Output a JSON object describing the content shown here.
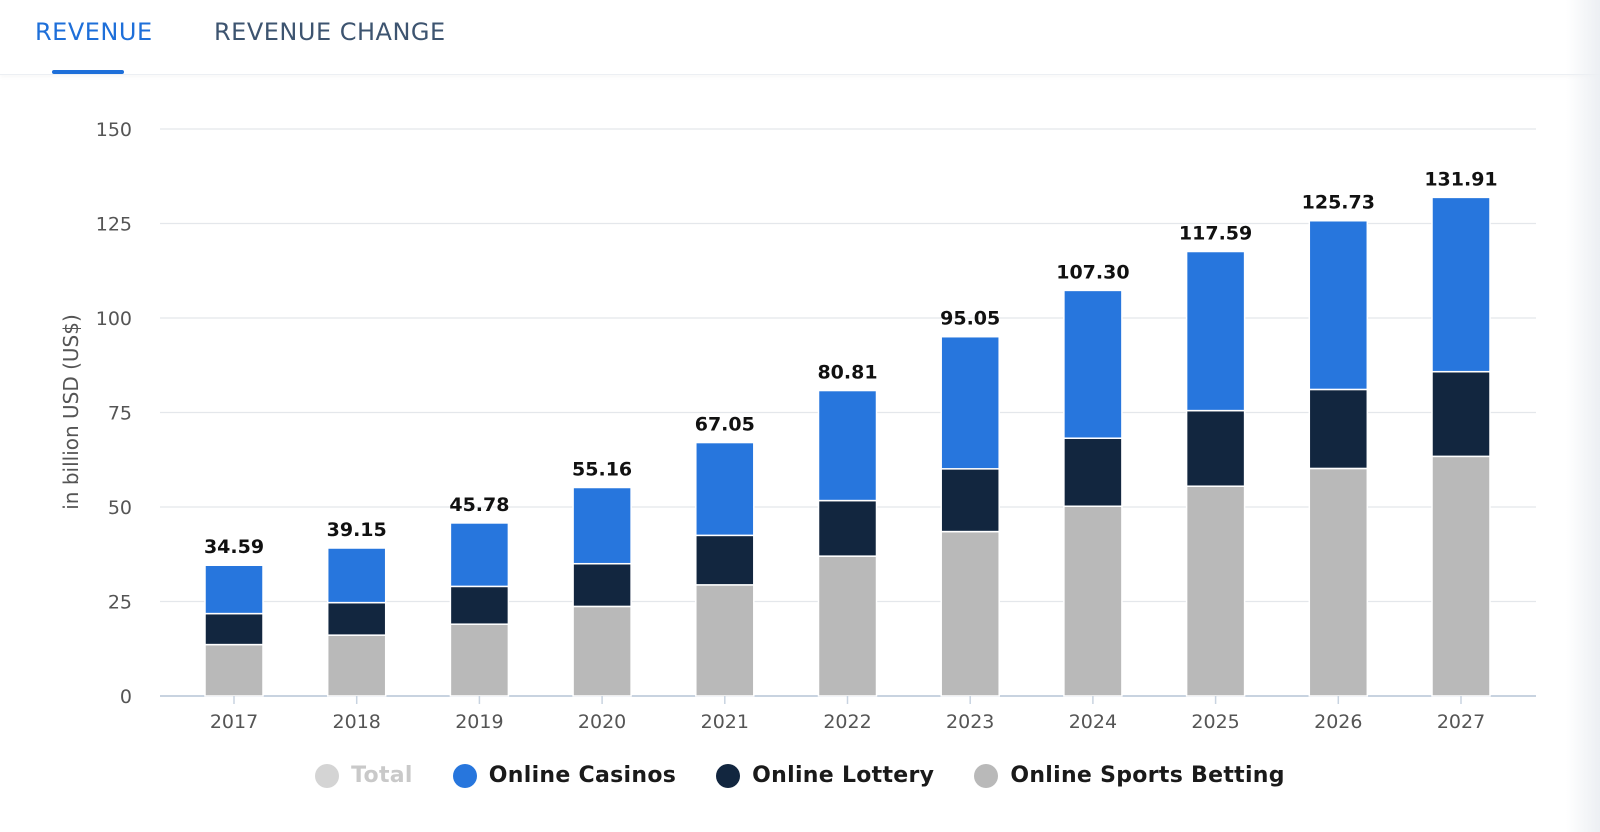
{
  "tabs": [
    {
      "label": "REVENUE",
      "active": true
    },
    {
      "label": "REVENUE CHANGE",
      "active": false
    }
  ],
  "colors": {
    "accent": "#1e6fd9",
    "online_casinos": "#2776dd",
    "online_lottery": "#12263f",
    "online_sports_betting": "#b9b9b9",
    "total_legend_muted": "#d4d4d4"
  },
  "chart_data": {
    "type": "bar",
    "stacked": true,
    "categories": [
      "2017",
      "2018",
      "2019",
      "2020",
      "2021",
      "2022",
      "2023",
      "2024",
      "2025",
      "2026",
      "2027"
    ],
    "series": [
      {
        "name": "Online Sports Betting",
        "values": [
          13.6,
          16.1,
          19.0,
          23.7,
          29.4,
          37.0,
          43.5,
          50.2,
          55.5,
          60.2,
          63.4
        ]
      },
      {
        "name": "Online Lottery",
        "values": [
          8.2,
          8.6,
          10.0,
          11.3,
          13.1,
          14.7,
          16.6,
          18.0,
          20.0,
          20.9,
          22.4
        ]
      },
      {
        "name": "Online Casinos",
        "values": [
          12.79,
          14.45,
          16.78,
          20.16,
          24.55,
          29.11,
          34.95,
          39.1,
          42.09,
          44.63,
          46.11
        ]
      }
    ],
    "totals": [
      "34.59",
      "39.15",
      "45.78",
      "55.16",
      "67.05",
      "80.81",
      "95.05",
      "107.30",
      "117.59",
      "125.73",
      "131.91"
    ],
    "ylabel": "in billion USD (US$)",
    "ylim": [
      0,
      150
    ],
    "yticks": [
      0,
      25,
      50,
      75,
      100,
      125,
      150
    ],
    "grid": true,
    "legend_position": "bottom",
    "legend": [
      "Total",
      "Online Casinos",
      "Online Lottery",
      "Online Sports Betting"
    ]
  }
}
